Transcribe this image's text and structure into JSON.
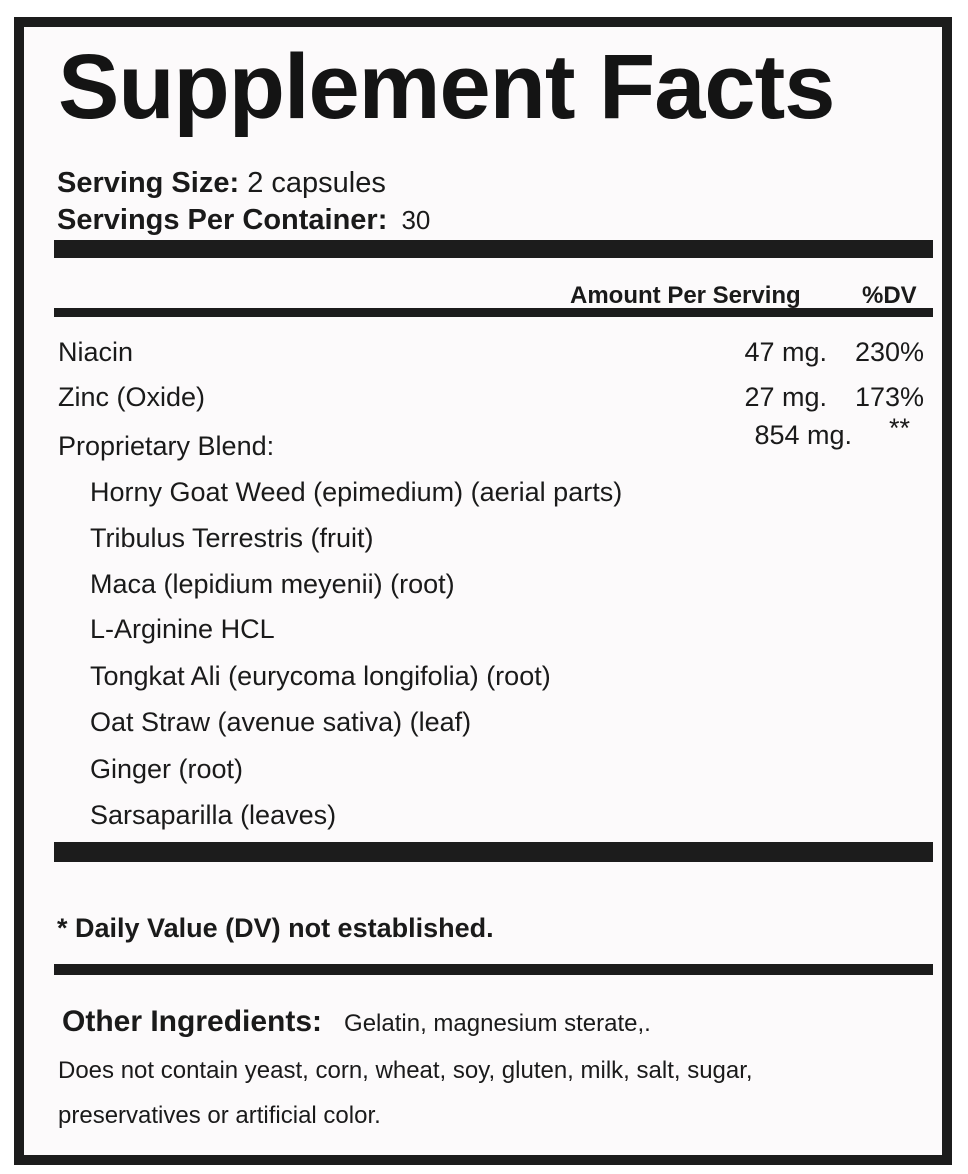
{
  "title": "Supplement Facts",
  "serving": {
    "size_label": "Serving Size:",
    "size_value": "2 capsules",
    "per_container_label": "Servings Per Container:",
    "per_container_value": "30"
  },
  "header": {
    "amount": "Amount Per Serving",
    "dv": "%DV"
  },
  "nutrients": [
    {
      "name": "Niacin",
      "amount": "47 mg.",
      "dv": "230%"
    },
    {
      "name": "Zinc (Oxide)",
      "amount": "27 mg.",
      "dv": "173%"
    },
    {
      "name": "Proprietary Blend:",
      "amount": "854 mg.",
      "dv": "**"
    }
  ],
  "blend_ingredients": [
    "Horny Goat Weed (epimedium) (aerial parts)",
    "Tribulus Terrestris (fruit)",
    "Maca (lepidium meyenii) (root)",
    "L-Arginine HCL",
    "Tongkat Ali (eurycoma longifolia) (root)",
    "Oat Straw (avenue sativa) (leaf)",
    "Ginger (root)",
    "Sarsaparilla (leaves)"
  ],
  "footnote": "* Daily Value (DV) not established.",
  "other": {
    "label": "Other Ingredients:",
    "value": "Gelatin, magnesium sterate,.",
    "line1": "Does not contain yeast, corn, wheat, soy, gluten, milk, salt, sugar,",
    "line2": "preservatives or artificial color."
  }
}
